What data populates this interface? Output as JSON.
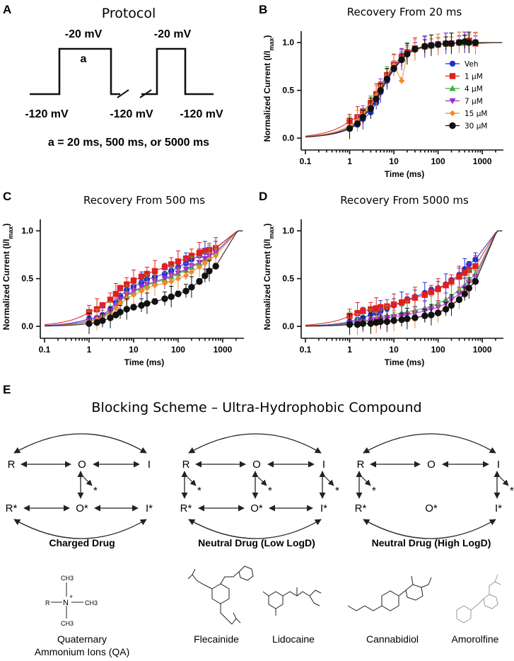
{
  "panel_labels": [
    "A",
    "B",
    "C",
    "D",
    "E"
  ],
  "protocol": {
    "title": "Protocol",
    "pulse_top_label": "-20 mV",
    "pulse_top_label2": "-20 mV",
    "pulse_marker": "a",
    "hold_labels": [
      "-120 mV",
      "-120 mV",
      "-120 mV"
    ],
    "caption": "a = 20 ms, 500 ms, or 5000 ms"
  },
  "axis_text": {
    "xlabel": "Time (ms)",
    "ylabel_main": "Normalized Current (I/I",
    "ylabel_sub": "max",
    "ylabel_end": ")",
    "xticks": [
      "0.1",
      "1",
      "10",
      "100",
      "1000"
    ],
    "yticks": [
      "0.0",
      "0.5",
      "1.0"
    ]
  },
  "legend": [
    "Veh",
    "1 µM",
    "4 µM",
    "7 µM",
    "15 µM",
    "30 µM"
  ],
  "colors": [
    "#1f2fd6",
    "#e0201b",
    "#3cb043",
    "#9b30c8",
    "#f28a2a",
    "#111111"
  ],
  "chart_data": [
    {
      "type": "scatter",
      "title": "Recovery From 20 ms",
      "xscale": "log",
      "xlim": [
        0.1,
        3000
      ],
      "ylim": [
        -0.08,
        1.12
      ],
      "x": [
        1,
        1.5,
        2,
        3,
        4,
        5,
        7,
        10,
        15,
        20,
        30,
        50,
        70,
        100,
        150,
        200,
        300,
        400,
        500,
        700
      ],
      "series": [
        {
          "name": "Veh",
          "values": [
            0.1,
            0.14,
            0.2,
            0.27,
            0.37,
            0.48,
            0.6,
            0.72,
            0.82,
            0.88,
            0.93,
            0.96,
            0.97,
            0.98,
            0.99,
            0.99,
            1.0,
            1.0,
            1.0,
            1.0
          ]
        },
        {
          "name": "1 µM",
          "values": [
            0.18,
            0.22,
            0.28,
            0.37,
            0.46,
            0.55,
            0.66,
            0.77,
            0.85,
            0.9,
            0.94,
            0.96,
            0.97,
            0.98,
            0.99,
            0.99,
            1.0,
            1.0,
            1.02,
            0.99
          ]
        },
        {
          "name": "4 µM",
          "values": [
            0.12,
            0.17,
            0.24,
            0.33,
            0.43,
            0.52,
            0.64,
            0.75,
            0.84,
            0.89,
            0.93,
            0.96,
            0.97,
            0.98,
            0.99,
            0.99,
            1.0,
            1.0,
            1.0,
            1.0
          ]
        },
        {
          "name": "7 µM",
          "values": [
            0.11,
            0.16,
            0.23,
            0.32,
            0.42,
            0.51,
            0.63,
            0.74,
            0.83,
            0.88,
            0.93,
            0.95,
            0.97,
            0.98,
            0.99,
            0.99,
            1.0,
            1.0,
            1.0,
            1.0
          ]
        },
        {
          "name": "15 µM",
          "values": [
            0.13,
            0.18,
            0.25,
            0.34,
            0.44,
            0.53,
            0.65,
            0.76,
            0.6,
            0.88,
            0.92,
            0.95,
            0.97,
            0.98,
            0.99,
            0.99,
            1.0,
            1.0,
            1.0,
            1.0
          ]
        },
        {
          "name": "30 µM",
          "values": [
            0.1,
            0.15,
            0.22,
            0.31,
            0.41,
            0.5,
            0.62,
            0.73,
            0.82,
            0.88,
            0.93,
            0.96,
            0.97,
            0.98,
            0.99,
            0.99,
            1.0,
            1.01,
            1.0,
            1.0
          ]
        }
      ]
    },
    {
      "type": "scatter",
      "title": "Recovery From 500 ms",
      "xscale": "log",
      "xlim": [
        0.1,
        3000
      ],
      "ylim": [
        -0.08,
        1.12
      ],
      "x": [
        1,
        1.5,
        2,
        3,
        4,
        5,
        7,
        10,
        15,
        20,
        30,
        50,
        70,
        100,
        150,
        200,
        300,
        400,
        500,
        700
      ],
      "series": [
        {
          "name": "Veh",
          "values": [
            0.08,
            0.09,
            0.12,
            0.18,
            0.25,
            0.32,
            0.38,
            0.42,
            0.46,
            0.49,
            0.52,
            0.55,
            0.58,
            0.62,
            0.66,
            0.7,
            0.74,
            0.78,
            0.8,
            0.82
          ]
        },
        {
          "name": "1 µM",
          "values": [
            0.15,
            0.18,
            0.22,
            0.28,
            0.34,
            0.4,
            0.44,
            0.48,
            0.52,
            0.55,
            0.58,
            0.62,
            0.65,
            0.68,
            0.71,
            0.74,
            0.77,
            0.79,
            0.8,
            0.82
          ]
        },
        {
          "name": "4 µM",
          "values": [
            0.05,
            0.07,
            0.1,
            0.15,
            0.21,
            0.27,
            0.32,
            0.36,
            0.4,
            0.43,
            0.46,
            0.49,
            0.52,
            0.55,
            0.59,
            0.62,
            0.66,
            0.7,
            0.74,
            0.78
          ]
        },
        {
          "name": "7 µM",
          "values": [
            0.06,
            0.08,
            0.11,
            0.16,
            0.22,
            0.28,
            0.33,
            0.37,
            0.41,
            0.44,
            0.47,
            0.5,
            0.53,
            0.56,
            0.6,
            0.63,
            0.67,
            0.71,
            0.74,
            0.77
          ]
        },
        {
          "name": "15 µM",
          "values": [
            0.05,
            0.07,
            0.09,
            0.13,
            0.19,
            0.24,
            0.29,
            0.33,
            0.37,
            0.4,
            0.43,
            0.45,
            0.47,
            0.5,
            0.53,
            0.57,
            0.62,
            0.66,
            0.7,
            0.74
          ]
        },
        {
          "name": "30 µM",
          "values": [
            0.03,
            0.04,
            0.06,
            0.09,
            0.12,
            0.15,
            0.18,
            0.2,
            0.22,
            0.24,
            0.26,
            0.29,
            0.31,
            0.34,
            0.37,
            0.41,
            0.47,
            0.53,
            0.58,
            0.63
          ]
        }
      ]
    },
    {
      "type": "scatter",
      "title": "Recovery From 5000 ms",
      "xscale": "log",
      "xlim": [
        0.1,
        3000
      ],
      "ylim": [
        -0.08,
        1.12
      ],
      "x": [
        1,
        1.5,
        2,
        3,
        4,
        5,
        7,
        10,
        15,
        20,
        30,
        50,
        70,
        100,
        150,
        200,
        300,
        400,
        500,
        700
      ],
      "series": [
        {
          "name": "Veh",
          "values": [
            0.05,
            0.07,
            0.09,
            0.12,
            0.14,
            0.16,
            0.19,
            0.22,
            0.25,
            0.28,
            0.31,
            0.35,
            0.38,
            0.4,
            0.44,
            0.48,
            0.54,
            0.6,
            0.65,
            0.7
          ]
        },
        {
          "name": "1 µM",
          "values": [
            0.11,
            0.14,
            0.16,
            0.18,
            0.19,
            0.2,
            0.21,
            0.23,
            0.25,
            0.27,
            0.3,
            0.33,
            0.36,
            0.39,
            0.43,
            0.47,
            0.52,
            0.56,
            0.59,
            0.63
          ]
        },
        {
          "name": "4 µM",
          "values": [
            0.04,
            0.05,
            0.06,
            0.07,
            0.08,
            0.1,
            0.11,
            0.12,
            0.14,
            0.15,
            0.17,
            0.19,
            0.21,
            0.24,
            0.28,
            0.32,
            0.38,
            0.43,
            0.48,
            0.55
          ]
        },
        {
          "name": "7 µM",
          "values": [
            0.03,
            0.04,
            0.05,
            0.06,
            0.07,
            0.08,
            0.09,
            0.1,
            0.11,
            0.12,
            0.14,
            0.16,
            0.18,
            0.2,
            0.24,
            0.28,
            0.34,
            0.4,
            0.46,
            0.52
          ]
        },
        {
          "name": "15 µM",
          "values": [
            0.02,
            0.02,
            0.03,
            0.03,
            0.04,
            0.04,
            0.05,
            0.06,
            0.07,
            0.08,
            0.09,
            0.11,
            0.13,
            0.15,
            0.19,
            0.23,
            0.29,
            0.35,
            0.41,
            0.48
          ]
        },
        {
          "name": "30 µM",
          "values": [
            0.02,
            0.02,
            0.03,
            0.03,
            0.04,
            0.05,
            0.05,
            0.06,
            0.07,
            0.08,
            0.09,
            0.11,
            0.12,
            0.14,
            0.18,
            0.22,
            0.28,
            0.34,
            0.4,
            0.47
          ]
        }
      ]
    }
  ],
  "scheme": {
    "title": "Blocking Scheme – Ultra-Hydrophobic Compound",
    "states": [
      "R",
      "O",
      "I",
      "R*",
      "O*",
      "I*"
    ],
    "star": "*",
    "drug_titles": [
      "Charged Drug",
      "Neutral Drug (Low LogD)",
      "Neutral Drug (High LogD)"
    ],
    "molecules": [
      {
        "name1": "Quaternary",
        "name2": "Ammonium Ions (QA)"
      },
      {
        "name1": "Flecainide"
      },
      {
        "name1": "Lidocaine"
      },
      {
        "name1": "Cannabidiol"
      },
      {
        "name1": "Amorolfine"
      }
    ],
    "qa_glyphs": {
      "r": "R",
      "n": "N",
      "plus": "+",
      "ch3": "CH3"
    }
  }
}
